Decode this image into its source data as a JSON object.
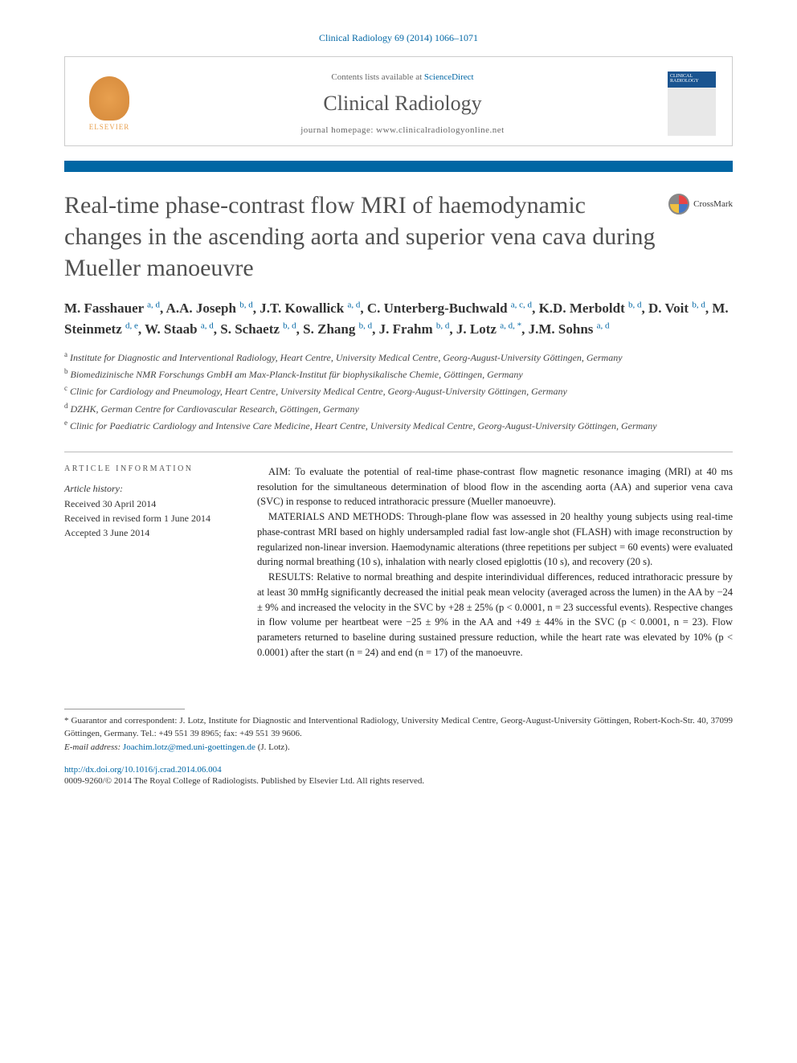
{
  "citation": "Clinical Radiology 69 (2014) 1066–1071",
  "header": {
    "elsevier_label": "ELSEVIER",
    "contents_prefix": "Contents lists available at ",
    "contents_link": "ScienceDirect",
    "journal_name": "Clinical Radiology",
    "homepage_prefix": "journal homepage: ",
    "homepage_url": "www.clinicalradiologyonline.net",
    "cover_label": "CLINICAL RADIOLOGY"
  },
  "colors": {
    "accent": "#0066a4",
    "link": "#0066a4",
    "title_gray": "#505050",
    "elsevier_orange": "#e8a04f"
  },
  "crossmark_label": "CrossMark",
  "title": "Real-time phase-contrast flow MRI of haemodynamic changes in the ascending aorta and superior vena cava during Mueller manoeuvre",
  "authors_html": "M. Fasshauer <sup>a, d</sup>, A.A. Joseph <sup>b, d</sup>, J.T. Kowallick <sup>a, d</sup>, C. Unterberg-Buchwald <sup>a, c, d</sup>, K.D. Merboldt <sup>b, d</sup>, D. Voit <sup>b, d</sup>, M. Steinmetz <sup>d, e</sup>, W. Staab <sup>a, d</sup>, S. Schaetz <sup>b, d</sup>, S. Zhang <sup>b, d</sup>, J. Frahm <sup>b, d</sup>, J. Lotz <sup>a, d, *</sup>, J.M. Sohns <sup>a, d</sup>",
  "affiliations": [
    {
      "key": "a",
      "text": "Institute for Diagnostic and Interventional Radiology, Heart Centre, University Medical Centre, Georg-August-University Göttingen, Germany"
    },
    {
      "key": "b",
      "text": "Biomedizinische NMR Forschungs GmbH am Max-Planck-Institut für biophysikalische Chemie, Göttingen, Germany"
    },
    {
      "key": "c",
      "text": "Clinic for Cardiology and Pneumology, Heart Centre, University Medical Centre, Georg-August-University Göttingen, Germany"
    },
    {
      "key": "d",
      "text": "DZHK, German Centre for Cardiovascular Research, Göttingen, Germany"
    },
    {
      "key": "e",
      "text": "Clinic for Paediatric Cardiology and Intensive Care Medicine, Heart Centre, University Medical Centre, Georg-August-University Göttingen, Germany"
    }
  ],
  "article_info": {
    "heading": "ARTICLE INFORMATION",
    "history_label": "Article history:",
    "received": "Received 30 April 2014",
    "revised": "Received in revised form 1 June 2014",
    "accepted": "Accepted 3 June 2014"
  },
  "abstract": {
    "aim": "AIM: To evaluate the potential of real-time phase-contrast flow magnetic resonance imaging (MRI) at 40 ms resolution for the simultaneous determination of blood flow in the ascending aorta (AA) and superior vena cava (SVC) in response to reduced intrathoracic pressure (Mueller manoeuvre).",
    "methods": "MATERIALS AND METHODS: Through-plane flow was assessed in 20 healthy young subjects using real-time phase-contrast MRI based on highly undersampled radial fast low-angle shot (FLASH) with image reconstruction by regularized non-linear inversion. Haemodynamic alterations (three repetitions per subject = 60 events) were evaluated during normal breathing (10 s), inhalation with nearly closed epiglottis (10 s), and recovery (20 s).",
    "results": "RESULTS: Relative to normal breathing and despite interindividual differences, reduced intrathoracic pressure by at least 30 mmHg significantly decreased the initial peak mean velocity (averaged across the lumen) in the AA by −24 ± 9% and increased the velocity in the SVC by +28 ± 25% (p < 0.0001, n = 23 successful events). Respective changes in flow volume per heartbeat were −25 ± 9% in the AA and +49 ± 44% in the SVC (p < 0.0001, n = 23). Flow parameters returned to baseline during sustained pressure reduction, while the heart rate was elevated by 10% (p < 0.0001) after the start (n = 24) and end (n = 17) of the manoeuvre."
  },
  "footnotes": {
    "guarantor": "* Guarantor and correspondent: J. Lotz, Institute for Diagnostic and Interventional Radiology, University Medical Centre, Georg-August-University Göttingen, Robert-Koch-Str. 40, 37099 Göttingen, Germany. Tel.: +49 551 39 8965; fax: +49 551 39 9606.",
    "email_label": "E-mail address: ",
    "email": "Joachim.lotz@med.uni-goettingen.de",
    "email_person": " (J. Lotz)."
  },
  "doi": "http://dx.doi.org/10.1016/j.crad.2014.06.004",
  "copyright": "0009-9260/© 2014 The Royal College of Radiologists. Published by Elsevier Ltd. All rights reserved."
}
